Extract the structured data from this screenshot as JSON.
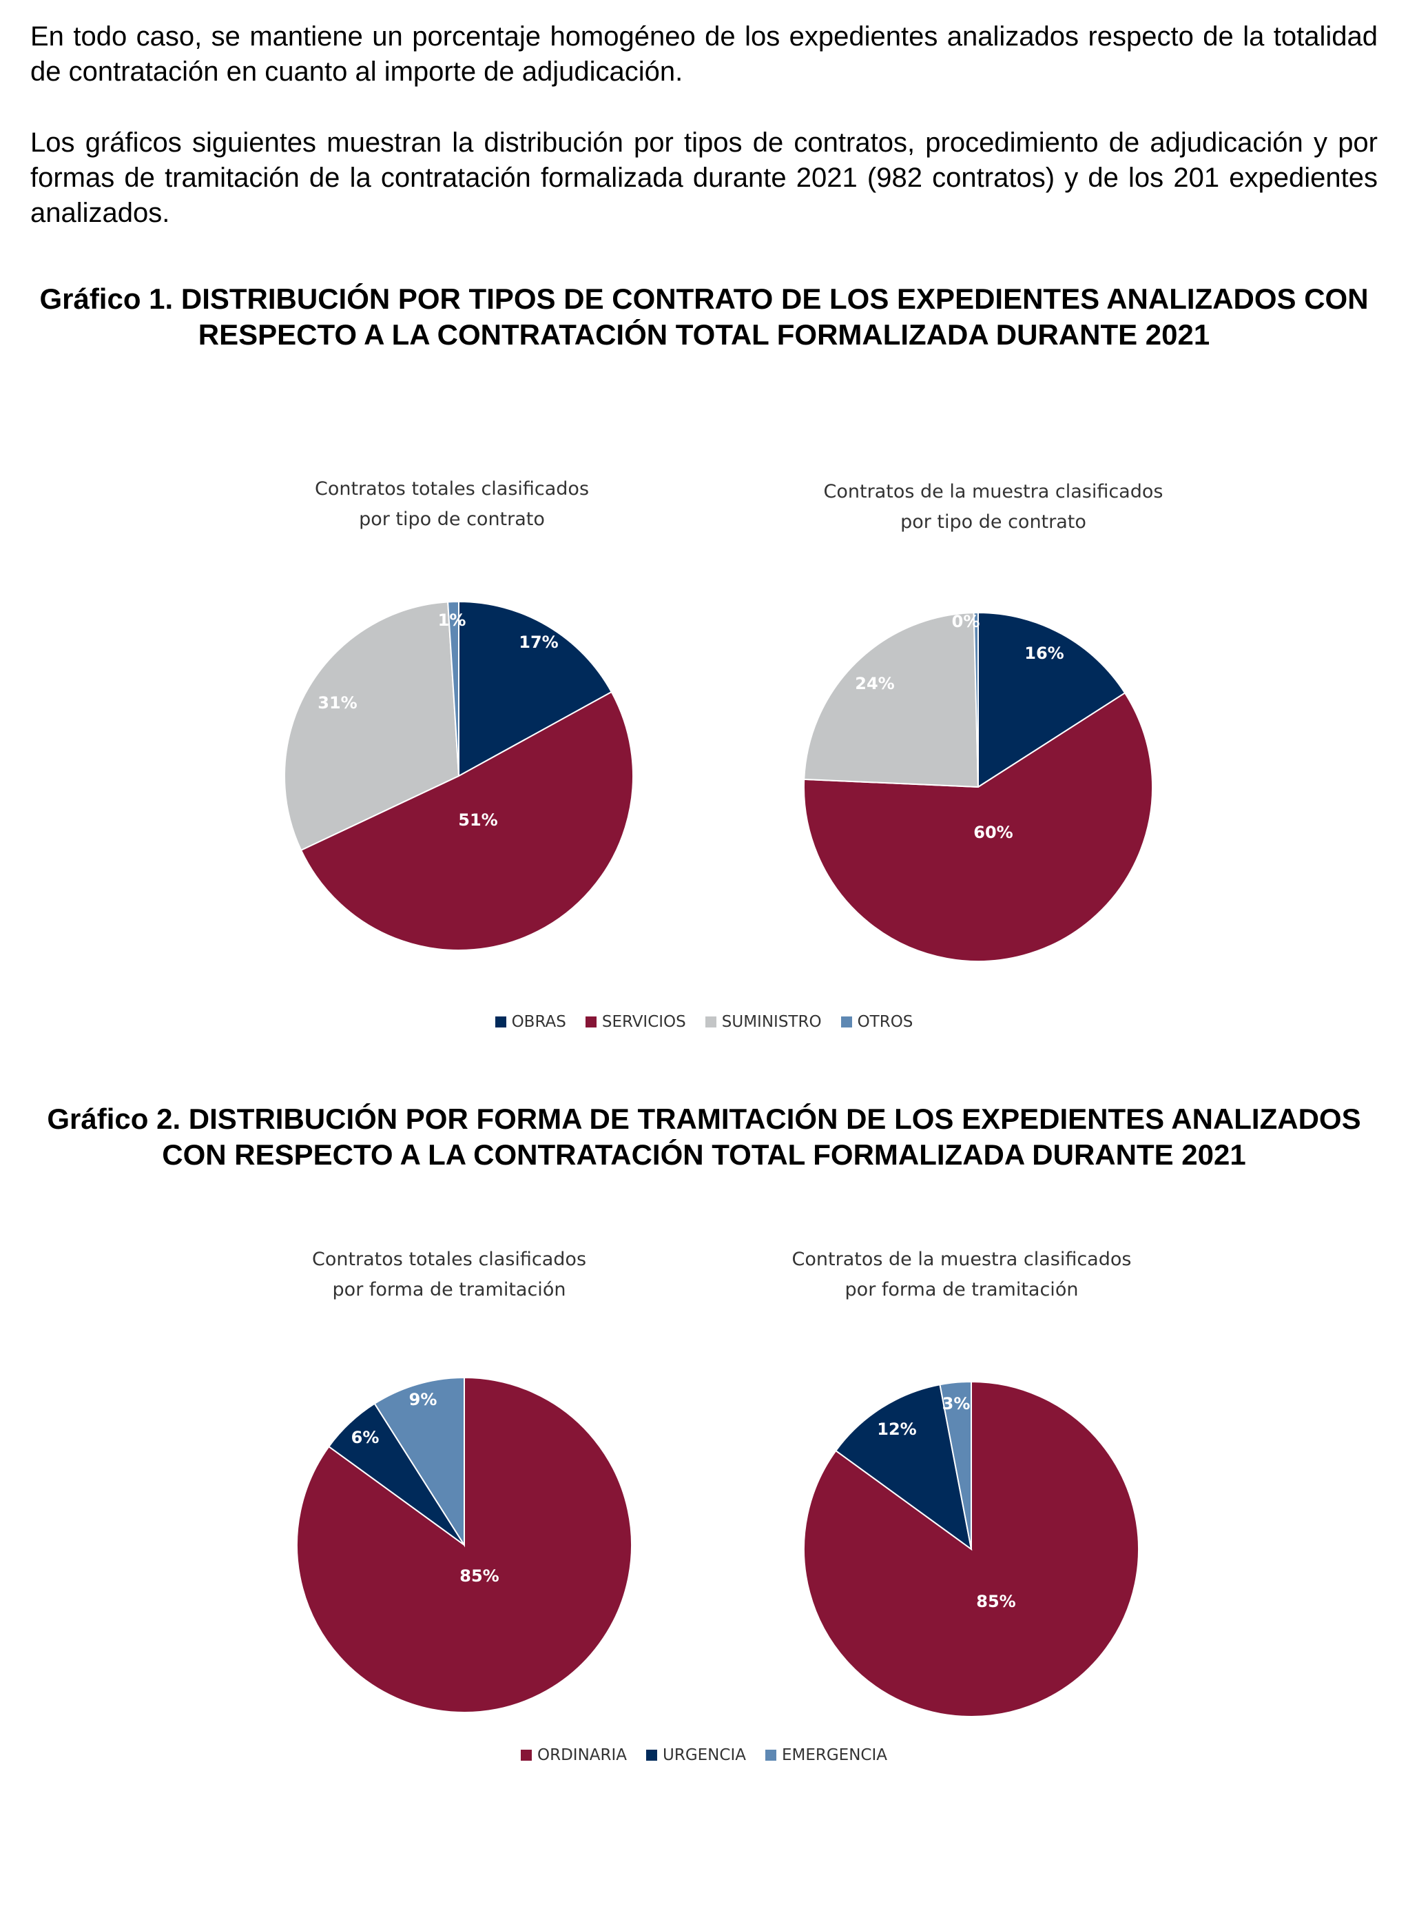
{
  "text": {
    "paragraph1": "En todo caso, se mantiene un porcentaje homogéneo de los expedientes analizados respecto de la totalidad de contratación en cuanto al importe de adjudicación.",
    "paragraph2": "Los gráficos siguientes muestran la distribución por tipos de contratos, procedimiento de adjudicación y por formas de tramitación de la contratación formalizada durante 2021 (982 contratos) y de los 201 expedientes analizados."
  },
  "figures": [
    {
      "heading": "Gráfico 1.    DISTRIBUCIÓN POR TIPOS DE CONTRATO DE LOS EXPEDIENTES ANALIZADOS CON RESPECTO A LA CONTRATACIÓN TOTAL FORMALIZADA DURANTE 2021",
      "legend": [
        "OBRAS",
        "SERVICIOS",
        "SUMINISTRO",
        "OTROS"
      ]
    },
    {
      "heading": "Gráfico 2.    DISTRIBUCIÓN POR FORMA DE TRAMITACIÓN DE LOS EXPEDIENTES ANALIZADOS CON RESPECTO A LA CONTRATACIÓN TOTAL FORMALIZADA DURANTE 2021",
      "legend": [
        "ORDINARIA",
        "URGENCIA",
        "EMERGENCIA"
      ]
    }
  ],
  "colors": {
    "OBRAS": "#002a5a",
    "SERVICIOS": "#861536",
    "SUMINISTRO": "#c3c5c6",
    "OTROS": "#5e88b3",
    "ORDINARIA": "#861536",
    "URGENCIA": "#002a5a",
    "EMERGENCIA": "#5e88b3"
  },
  "chart_data": [
    {
      "type": "pie",
      "title_lines": [
        "Contratos totales clasificados",
        "por tipo de contrato"
      ],
      "categories": [
        "OBRAS",
        "SERVICIOS",
        "SUMINISTRO",
        "OTROS"
      ],
      "values": [
        17,
        51,
        31,
        1
      ],
      "labels": [
        "17%",
        "51%",
        "31%",
        "1%"
      ],
      "legend": "bottom"
    },
    {
      "type": "pie",
      "title_lines": [
        "Contratos de la muestra clasificados",
        "por tipo de contrato"
      ],
      "categories": [
        "OBRAS",
        "SERVICIOS",
        "SUMINISTRO",
        "OTROS"
      ],
      "values": [
        16,
        60,
        24,
        0.4
      ],
      "labels": [
        "16%",
        "60%",
        "24%",
        "0%"
      ],
      "legend": "bottom"
    },
    {
      "type": "pie",
      "title_lines": [
        "Contratos totales clasificados",
        "por forma de tramitación"
      ],
      "categories": [
        "ORDINARIA",
        "URGENCIA",
        "EMERGENCIA"
      ],
      "values": [
        85,
        6,
        9
      ],
      "labels": [
        "85%",
        "6%",
        "9%"
      ],
      "legend": "bottom"
    },
    {
      "type": "pie",
      "title_lines": [
        "Contratos de la muestra clasificados",
        "por forma de tramitación"
      ],
      "categories": [
        "ORDINARIA",
        "URGENCIA",
        "EMERGENCIA"
      ],
      "values": [
        85,
        12,
        3
      ],
      "labels": [
        "85%",
        "12%",
        "3%"
      ],
      "legend": "bottom"
    }
  ]
}
